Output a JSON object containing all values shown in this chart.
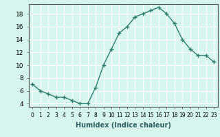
{
  "x": [
    0,
    1,
    2,
    3,
    4,
    5,
    6,
    7,
    8,
    9,
    10,
    11,
    12,
    13,
    14,
    15,
    16,
    17,
    18,
    19,
    20,
    21,
    22,
    23
  ],
  "y": [
    7.0,
    6.0,
    5.5,
    5.0,
    5.0,
    4.5,
    4.0,
    4.0,
    6.5,
    10.0,
    12.5,
    15.0,
    16.0,
    17.5,
    18.0,
    18.5,
    19.0,
    18.0,
    16.5,
    14.0,
    12.5,
    11.5,
    11.5,
    10.5
  ],
  "xlabel": "Humidex (Indice chaleur)",
  "xlim": [
    -0.5,
    23.5
  ],
  "ylim": [
    3.5,
    19.5
  ],
  "yticks": [
    4,
    6,
    8,
    10,
    12,
    14,
    16,
    18
  ],
  "xticks": [
    0,
    1,
    2,
    3,
    4,
    5,
    6,
    7,
    8,
    9,
    10,
    11,
    12,
    13,
    14,
    15,
    16,
    17,
    18,
    19,
    20,
    21,
    22,
    23
  ],
  "xtick_labels": [
    "0",
    "1",
    "2",
    "3",
    "4",
    "5",
    "6",
    "7",
    "8",
    "9",
    "10",
    "11",
    "12",
    "13",
    "14",
    "15",
    "16",
    "17",
    "18",
    "19",
    "20",
    "21",
    "22",
    "23"
  ],
  "line_color": "#2e7d6e",
  "marker": "+",
  "bg_color": "#d6f5ef",
  "grid_color": "#ffffff",
  "xlabel_fontsize": 7,
  "tick_fontsize": 5.5,
  "ytick_fontsize": 6.5
}
